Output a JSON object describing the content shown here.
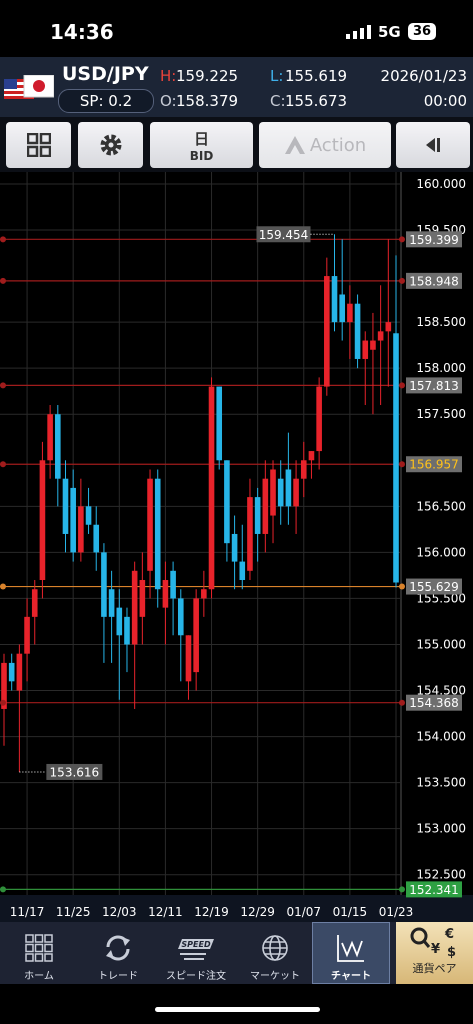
{
  "status_bar": {
    "time": "14:36",
    "network": "5G",
    "battery": "36"
  },
  "header": {
    "pair": "USD/JPY",
    "spread": "SP: 0.2",
    "high_label": "H:",
    "high": "159.225",
    "open_label": "O:",
    "open": "158.379",
    "low_label": "L:",
    "low": "155.619",
    "close_label": "C:",
    "close": "155.673",
    "date": "2026/01/23",
    "time": "00:00"
  },
  "toolbar": {
    "period": "日",
    "price_type": "BID",
    "action": "Action"
  },
  "chart": {
    "type": "candlestick",
    "up_color": "#e8232b",
    "down_color": "#27b5e8",
    "grid": true,
    "ylim": [
      152.28,
      160.13
    ],
    "yticks": [
      {
        "value": 160,
        "label": "160.000"
      },
      {
        "value": 159.5,
        "label": "159.500"
      },
      {
        "value": 158.5,
        "label": "158.500"
      },
      {
        "value": 158,
        "label": "158.000"
      },
      {
        "value": 157.5,
        "label": "157.500"
      },
      {
        "value": 156.5,
        "label": "156.500"
      },
      {
        "value": 156,
        "label": "156.000"
      },
      {
        "value": 155.5,
        "label": "155.500"
      },
      {
        "value": 155,
        "label": "155.000"
      },
      {
        "value": 154.5,
        "label": "154.500"
      },
      {
        "value": 154,
        "label": "154.000"
      },
      {
        "value": 153.5,
        "label": "153.500"
      },
      {
        "value": 153,
        "label": "153.000"
      },
      {
        "value": 152.5,
        "label": "152.500"
      }
    ],
    "categories": [
      null,
      null,
      null,
      "11/17",
      null,
      null,
      null,
      null,
      null,
      "11/25",
      null,
      null,
      null,
      null,
      null,
      "12/03",
      null,
      null,
      null,
      null,
      null,
      "12/11",
      null,
      null,
      null,
      null,
      null,
      "12/19",
      null,
      null,
      null,
      null,
      null,
      "12/29",
      null,
      null,
      null,
      null,
      null,
      "01/07",
      null,
      null,
      null,
      null,
      null,
      "01/15",
      null,
      null,
      null,
      null,
      null,
      "01/23"
    ],
    "open": [
      154.3,
      154.8,
      154.5,
      154.9,
      155.3,
      155.7,
      157.0,
      157.5,
      156.8,
      156.7,
      156.0,
      156.5,
      156.3,
      156.0,
      155.6,
      155.4,
      155.3,
      155.0,
      155.3,
      155.8,
      156.8,
      155.4,
      155.8,
      155.5,
      154.6,
      154.7,
      155.5,
      155.6,
      157.8,
      157.0,
      156.2,
      155.9,
      155.8,
      156.6,
      156.2,
      156.4,
      156.8,
      156.9,
      156.5,
      156.8,
      157.0,
      157.1,
      157.8,
      159.0,
      158.8,
      158.5,
      158.7,
      158.1,
      158.2,
      158.3,
      158.4,
      158.379
    ],
    "high": [
      154.9,
      154.9,
      155.0,
      155.5,
      155.7,
      157.2,
      157.6,
      157.6,
      157.0,
      156.9,
      156.8,
      156.7,
      156.5,
      156.1,
      155.8,
      155.6,
      155.4,
      155.9,
      156.0,
      156.9,
      156.9,
      155.9,
      155.9,
      155.6,
      155.1,
      155.6,
      155.8,
      157.9,
      157.8,
      157.0,
      156.4,
      156.3,
      156.8,
      156.7,
      157.0,
      157.0,
      157.0,
      157.3,
      157.0,
      157.2,
      157.1,
      157.9,
      159.2,
      159.454,
      159.4,
      158.9,
      158.8,
      158.4,
      158.6,
      158.9,
      159.4,
      159.225
    ],
    "low": [
      153.9,
      154.5,
      153.616,
      154.6,
      155.0,
      155.5,
      156.8,
      156.5,
      156.0,
      155.9,
      155.9,
      156.2,
      155.8,
      154.8,
      154.8,
      154.4,
      154.7,
      154.3,
      155.0,
      155.5,
      155.4,
      155.0,
      155.1,
      154.6,
      154.4,
      154.5,
      155.3,
      155.5,
      156.9,
      155.9,
      155.6,
      155.6,
      155.7,
      155.9,
      156.0,
      156.1,
      156.3,
      156.3,
      156.2,
      156.6,
      156.8,
      156.9,
      157.7,
      158.4,
      158.3,
      158.1,
      158.0,
      157.6,
      157.5,
      157.6,
      157.8,
      155.619
    ],
    "close": [
      154.8,
      154.6,
      154.9,
      155.3,
      155.6,
      157.0,
      157.5,
      156.8,
      156.2,
      156.0,
      156.5,
      156.3,
      156.0,
      155.3,
      155.3,
      155.1,
      155.0,
      155.8,
      155.7,
      156.8,
      155.6,
      155.7,
      155.5,
      155.1,
      155.1,
      155.5,
      155.6,
      157.8,
      157.0,
      156.1,
      155.9,
      155.7,
      156.6,
      156.2,
      156.8,
      156.9,
      156.5,
      156.5,
      156.8,
      157.0,
      157.1,
      157.8,
      159.0,
      158.5,
      158.5,
      158.7,
      158.1,
      158.3,
      158.3,
      158.4,
      158.5,
      155.673
    ],
    "levels": [
      {
        "value": 159.399,
        "color": "#a01c1c",
        "label_bg": "#6e6e6e",
        "label_color": "#ffffff"
      },
      {
        "value": 158.948,
        "color": "#a01c1c",
        "label_bg": "#6e6e6e",
        "label_color": "#ffffff"
      },
      {
        "value": 157.813,
        "color": "#a01c1c",
        "label_bg": "#6e6e6e",
        "label_color": "#ffffff"
      },
      {
        "value": 156.957,
        "color": "#a01c1c",
        "label_bg": "#6e6e6e",
        "label_color": "#ffc21a"
      },
      {
        "value": 155.629,
        "color": "#d9822b",
        "label_bg": "#6e6e6e",
        "label_color": "#ffffff"
      },
      {
        "value": 154.368,
        "color": "#a01c1c",
        "label_bg": "#6e6e6e",
        "label_color": "#ffffff"
      },
      {
        "value": 152.341,
        "color": "#2f8f3a",
        "label_bg": "#2ea043",
        "label_color": "#ffffff"
      }
    ],
    "high_marker": 159.454,
    "low_marker": 153.616
  },
  "tabs": [
    {
      "label": "ホーム"
    },
    {
      "label": "トレード"
    },
    {
      "label": "スピード注文",
      "icon_text": "SPEED"
    },
    {
      "label": "マーケット"
    },
    {
      "label": "チャート"
    },
    {
      "label": "通貨ペア",
      "icon_symbols": [
        "€",
        "¥",
        "$"
      ]
    }
  ]
}
